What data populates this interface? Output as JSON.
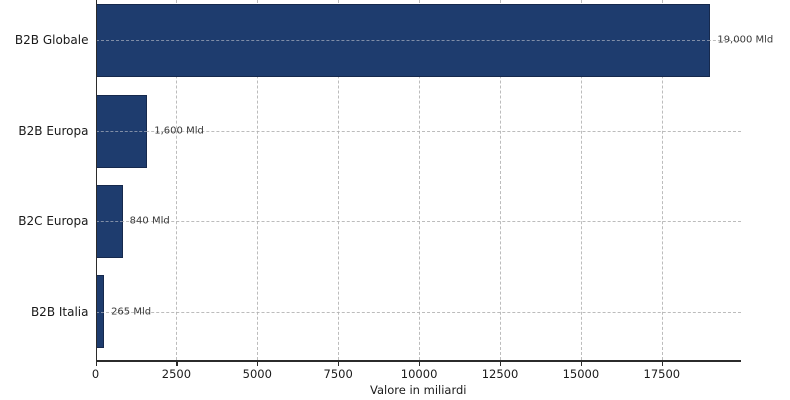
{
  "chart_data": {
    "type": "bar",
    "orientation": "horizontal",
    "categories": [
      "B2B Globale",
      "B2B Europa",
      "B2C Europa",
      "B2B Italia"
    ],
    "values": [
      19000,
      1600,
      840,
      265
    ],
    "value_labels": [
      "19,000 Mld",
      "1,600 Mld",
      "840 Mld",
      "265 Mld"
    ],
    "title": "",
    "xlabel": "Valore in miliardi",
    "ylabel": "",
    "xlim": [
      0,
      19950
    ],
    "xticks": [
      0,
      2500,
      5000,
      7500,
      10000,
      12500,
      15000,
      17500
    ],
    "grid": "both-dashed",
    "legend": "none",
    "bar_color": "#1e3c6e",
    "bar_edge_color": "#16294d",
    "grid_color": "#b0b0b0",
    "text_color": "#1a1a1a",
    "value_label_color": "#3a3a3a"
  }
}
